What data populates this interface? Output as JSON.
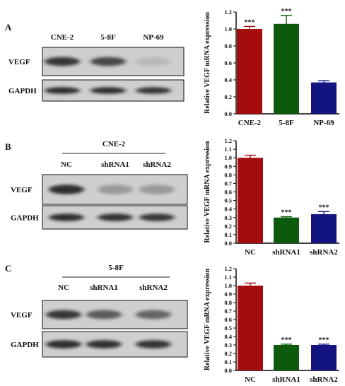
{
  "colors": {
    "red": "#a50d0d",
    "green": "#0c5a0c",
    "blue": "#141480",
    "blot_bg": "#cfcfcf",
    "band": "#1c1c1c"
  },
  "panels": [
    {
      "letter": "A",
      "group_label": "",
      "lanes": [
        "CNE-2",
        "5-8F",
        "NP-69"
      ],
      "rows": [
        {
          "label": "VEGF",
          "intensities": [
            0.85,
            0.75,
            0.12
          ]
        },
        {
          "label": "GAPDH",
          "intensities": [
            0.9,
            0.9,
            0.85
          ]
        }
      ],
      "chart_data": {
        "type": "bar",
        "ylabel": "Relative VEGF mRNA  expression",
        "categories": [
          "CNE-2",
          "5-8F",
          "NP-69"
        ],
        "values": [
          1.0,
          1.06,
          0.37
        ],
        "errors": [
          0.03,
          0.1,
          0.02
        ],
        "significance": [
          "***",
          "***",
          ""
        ],
        "bar_colors": [
          "red",
          "green",
          "blue"
        ],
        "ylim": [
          0,
          1.2
        ],
        "yticks": [
          "0.0",
          "0.2",
          "0.4",
          "0.6",
          "0.8",
          "1.0",
          "1.2"
        ],
        "grid": false
      }
    },
    {
      "letter": "B",
      "group_label": "CNE-2",
      "lanes": [
        "NC",
        "shRNA1",
        "shRNA2"
      ],
      "rows": [
        {
          "label": "VEGF",
          "intensities": [
            0.9,
            0.3,
            0.3
          ]
        },
        {
          "label": "GAPDH",
          "intensities": [
            0.9,
            0.88,
            0.85
          ]
        }
      ],
      "chart_data": {
        "type": "bar",
        "ylabel": "Relative VEGF mRNA  expression",
        "categories": [
          "NC",
          "shRNA1",
          "shRNA2"
        ],
        "values": [
          1.0,
          0.3,
          0.34
        ],
        "errors": [
          0.03,
          0.01,
          0.03
        ],
        "significance": [
          "",
          "***",
          "***"
        ],
        "bar_colors": [
          "red",
          "green",
          "blue"
        ],
        "ylim": [
          0,
          1.2
        ],
        "yticks": [
          "0.0",
          "0.1",
          "0.2",
          "0.3",
          "0.4",
          "0.5",
          "0.6",
          "0.7",
          "0.8",
          "0.9",
          "1.0",
          "1.1",
          "1.2"
        ],
        "grid": false
      }
    },
    {
      "letter": "C",
      "group_label": "5-8F",
      "lanes": [
        "NC",
        "shRNA1",
        "shRNA2"
      ],
      "rows": [
        {
          "label": "VEGF",
          "intensities": [
            0.85,
            0.65,
            0.6
          ]
        },
        {
          "label": "GAPDH",
          "intensities": [
            0.9,
            0.88,
            0.86
          ]
        }
      ],
      "chart_data": {
        "type": "bar",
        "ylabel": "Relative VEGF mRNA  expression",
        "categories": [
          "NC",
          "shRNA1",
          "shRNA2"
        ],
        "values": [
          1.0,
          0.3,
          0.3
        ],
        "errors": [
          0.03,
          0.01,
          0.01
        ],
        "significance": [
          "",
          "***",
          "***"
        ],
        "bar_colors": [
          "red",
          "green",
          "blue"
        ],
        "ylim": [
          0,
          1.2
        ],
        "yticks": [
          "0.0",
          "0.1",
          "0.2",
          "0.3",
          "0.4",
          "0.5",
          "0.6",
          "0.7",
          "0.8",
          "0.9",
          "1.0",
          "1.1",
          "1.2"
        ],
        "grid": false
      }
    }
  ]
}
